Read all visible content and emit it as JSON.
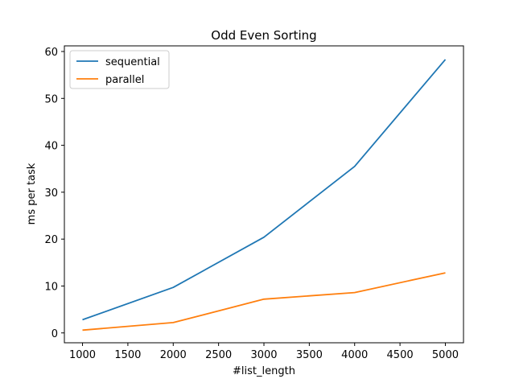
{
  "chart_data": {
    "type": "line",
    "title": "Odd Even Sorting",
    "xlabel": "#list_length",
    "ylabel": "ms per task",
    "x": [
      1000,
      2000,
      3000,
      4000,
      5000
    ],
    "xlim": [
      800,
      5200
    ],
    "ylim": [
      -2.1,
      61.2
    ],
    "xticks": [
      1000,
      1500,
      2000,
      2500,
      3000,
      3500,
      4000,
      4500,
      5000
    ],
    "yticks": [
      0,
      10,
      20,
      30,
      40,
      50,
      60
    ],
    "grid": false,
    "legend_position": "upper-left",
    "series": [
      {
        "name": "sequential",
        "color": "#1f77b4",
        "values": [
          2.8,
          9.7,
          20.4,
          35.5,
          58.3
        ]
      },
      {
        "name": "parallel",
        "color": "#ff7f0e",
        "values": [
          0.6,
          2.2,
          7.2,
          8.6,
          12.8
        ]
      }
    ]
  }
}
